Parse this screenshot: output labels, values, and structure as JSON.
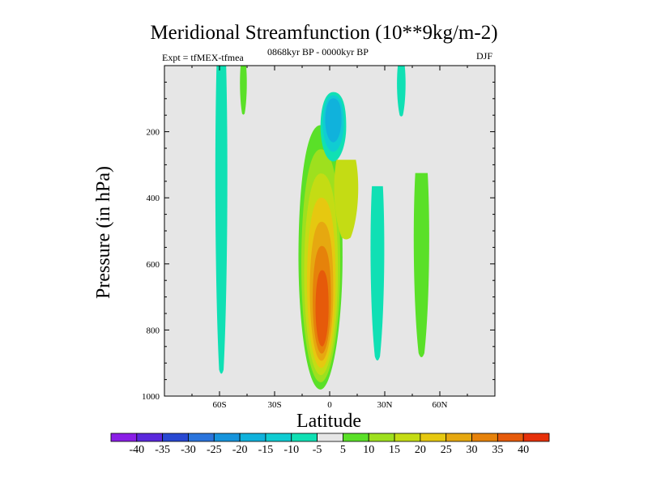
{
  "chart_data": {
    "type": "contour",
    "title": "Meridional Streamfunction (10**9kg/m-2)",
    "left_annotation": "Expt = tfMEX-tfmea",
    "center_annotation": "0868kyr BP - 0000kyr BP",
    "right_annotation": "DJF",
    "xlabel": "Latitude",
    "ylabel": "Pressure (in hPa)",
    "xlim": [
      -90,
      90
    ],
    "ylim": [
      1000,
      0
    ],
    "xticks": [
      {
        "value": -60,
        "label": "60S"
      },
      {
        "value": -30,
        "label": "30S"
      },
      {
        "value": 0,
        "label": "0"
      },
      {
        "value": 30,
        "label": "30N"
      },
      {
        "value": 60,
        "label": "60N"
      }
    ],
    "yticks": [
      {
        "value": 200,
        "label": "200"
      },
      {
        "value": 400,
        "label": "400"
      },
      {
        "value": 600,
        "label": "600"
      },
      {
        "value": 800,
        "label": "800"
      },
      {
        "value": 1000,
        "label": "1000"
      }
    ],
    "background_color": "#e6e6e6",
    "colorbar": {
      "labels": [
        "-40",
        "-35",
        "-30",
        "-25",
        "-20",
        "-15",
        "-10",
        "-5",
        "5",
        "10",
        "15",
        "20",
        "25",
        "30",
        "35",
        "40"
      ],
      "colors": [
        "#8a1ee6",
        "#5a28dc",
        "#2848d2",
        "#2a74dc",
        "#1694dc",
        "#10b2dc",
        "#10ccd2",
        "#10e0b4",
        "#e6e6e6",
        "#5ae028",
        "#9ee01e",
        "#c4dc14",
        "#e6c810",
        "#e6a810",
        "#e6820a",
        "#e65a0a",
        "#e6300a"
      ]
    },
    "features": [
      {
        "name": "sh-high-lat-cell",
        "center_lat": -59,
        "p_top": 0,
        "p_bottom": 920,
        "half_width_deg": 3.5,
        "value": -7
      },
      {
        "name": "sh-upper-green-strip",
        "center_lat": -47,
        "p_top": 0,
        "p_bottom": 145,
        "half_width_deg": 2,
        "value": 7
      },
      {
        "name": "main-hadley-cell",
        "center_lat": -5,
        "p_top": 180,
        "p_bottom": 980,
        "half_width_deg": 12,
        "peak_lat": -4,
        "peak_pressure": 760,
        "peak_value": 40
      },
      {
        "name": "upper-trop-negative-cell",
        "center_lat": 2,
        "p_top": 80,
        "p_bottom": 290,
        "half_width_deg": 7,
        "min_value": -20
      },
      {
        "name": "nh-narrow-positive-strip",
        "center_lat": 9,
        "p_top": 285,
        "p_bottom": 520,
        "half_width_deg": 7,
        "value": 15
      },
      {
        "name": "nh-subtropical-negative",
        "center_lat": 26,
        "p_top": 365,
        "p_bottom": 880,
        "half_width_deg": 4,
        "value": -7
      },
      {
        "name": "nh-midlat-positive",
        "center_lat": 50,
        "p_top": 325,
        "p_bottom": 870,
        "half_width_deg": 4.5,
        "value": 7
      },
      {
        "name": "nh-upper-negative-strip",
        "center_lat": 39,
        "p_top": 0,
        "p_bottom": 150,
        "half_width_deg": 2.5,
        "value": -7
      }
    ]
  }
}
